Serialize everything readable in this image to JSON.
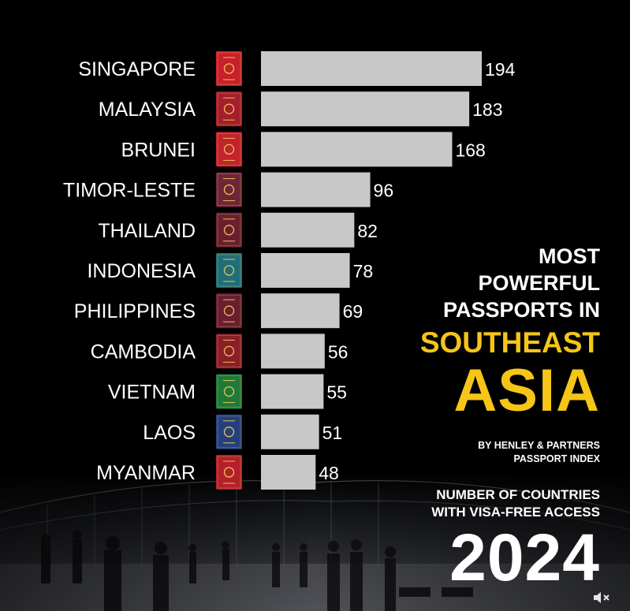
{
  "chart_data": {
    "type": "bar",
    "orientation": "horizontal",
    "categories": [
      "SINGAPORE",
      "MALAYSIA",
      "BRUNEI",
      "TIMOR-LESTE",
      "THAILAND",
      "INDONESIA",
      "PHILIPPINES",
      "CAMBODIA",
      "VIETNAM",
      "LAOS",
      "MYANMAR"
    ],
    "values": [
      194,
      183,
      168,
      96,
      82,
      78,
      69,
      56,
      55,
      51,
      48
    ],
    "value_labels": [
      "194",
      "183",
      "168",
      "96",
      "82",
      "78",
      "69",
      "56",
      "55",
      "51",
      "48"
    ],
    "bar_color": "#c8c8c8",
    "label_color": "#ffffff",
    "passport_colors": [
      "#c8202a",
      "#a51e2c",
      "#c2232c",
      "#6e2535",
      "#6b1f2e",
      "#1f6f78",
      "#6a1e30",
      "#8c1e2a",
      "#1f7a3a",
      "#24407e",
      "#b3202a"
    ],
    "xlim": [
      0,
      194
    ],
    "grid": false
  },
  "title": {
    "line1": "MOST\nPOWERFUL\nPASSPORTS IN",
    "line2": "SOUTHEAST",
    "line3": "ASIA",
    "accent_color": "#f5c518"
  },
  "source": "BY HENLEY & PARTNERS\nPASSPORT INDEX",
  "subtitle": "NUMBER OF COUNTRIES\nWITH VISA-FREE ACCESS",
  "year": "2024",
  "controls": {
    "sound_icon": "speaker-muted-icon"
  }
}
